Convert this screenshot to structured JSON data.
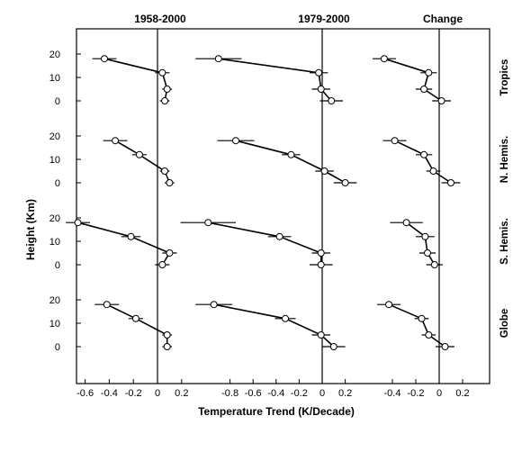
{
  "chart_data": {
    "type": "line",
    "column_titles": [
      "1958-2000",
      "1979-2000",
      "Change"
    ],
    "row_labels": [
      "Tropics",
      "N. Hemis.",
      "S. Hemis.",
      "Globe"
    ],
    "xlabel": "Temperature Trend (K/Decade)",
    "ylabel": "Height (Km)",
    "x_ticks": [
      [
        "-0.6",
        "-0.4",
        "-0.2",
        "0",
        "0.2"
      ],
      [
        "-0.8",
        "-0.6",
        "-0.4",
        "-0.2",
        "0",
        "0.2"
      ],
      [
        "-0.4",
        "-0.2",
        "0",
        "0.2"
      ]
    ],
    "x_tick_values": [
      [
        -0.6,
        -0.4,
        -0.2,
        0,
        0.2
      ],
      [
        -0.8,
        -0.6,
        -0.4,
        -0.2,
        0,
        0.2
      ],
      [
        -0.4,
        -0.2,
        0,
        0.2
      ]
    ],
    "y_ticks": [
      "0",
      "10",
      "20"
    ],
    "y_tick_values": [
      0,
      10,
      20
    ],
    "heights_km": [
      18,
      12,
      5,
      0
    ],
    "panels": [
      {
        "row": 0,
        "col": 0,
        "values": [
          -0.44,
          0.04,
          0.08,
          0.06
        ],
        "err": [
          0.1,
          0.06,
          0.04,
          0.04
        ]
      },
      {
        "row": 0,
        "col": 1,
        "values": [
          -0.9,
          -0.03,
          -0.01,
          0.08
        ],
        "err": [
          0.2,
          0.08,
          0.08,
          0.1
        ]
      },
      {
        "row": 0,
        "col": 2,
        "values": [
          -0.47,
          -0.09,
          -0.13,
          0.02
        ],
        "err": [
          0.1,
          0.07,
          0.07,
          0.08
        ]
      },
      {
        "row": 1,
        "col": 0,
        "values": [
          -0.35,
          -0.15,
          0.06,
          0.1
        ],
        "err": [
          0.1,
          0.06,
          0.04,
          0.04
        ]
      },
      {
        "row": 1,
        "col": 1,
        "values": [
          -0.75,
          -0.27,
          0.02,
          0.2
        ],
        "err": [
          0.16,
          0.08,
          0.08,
          0.1
        ]
      },
      {
        "row": 1,
        "col": 2,
        "values": [
          -0.38,
          -0.13,
          -0.05,
          0.1
        ],
        "err": [
          0.1,
          0.07,
          0.06,
          0.08
        ]
      },
      {
        "row": 2,
        "col": 0,
        "values": [
          -0.66,
          -0.22,
          0.1,
          0.04
        ],
        "err": [
          0.1,
          0.08,
          0.06,
          0.06
        ]
      },
      {
        "row": 2,
        "col": 1,
        "values": [
          -0.99,
          -0.37,
          -0.01,
          -0.01
        ],
        "err": [
          0.24,
          0.1,
          0.08,
          0.1
        ]
      },
      {
        "row": 2,
        "col": 2,
        "values": [
          -0.28,
          -0.12,
          -0.1,
          -0.04
        ],
        "err": [
          0.14,
          0.08,
          0.07,
          0.07
        ]
      },
      {
        "row": 3,
        "col": 0,
        "values": [
          -0.42,
          -0.18,
          0.08,
          0.08
        ],
        "err": [
          0.1,
          0.06,
          0.04,
          0.04
        ]
      },
      {
        "row": 3,
        "col": 1,
        "values": [
          -0.94,
          -0.32,
          -0.01,
          0.1
        ],
        "err": [
          0.16,
          0.09,
          0.08,
          0.1
        ]
      },
      {
        "row": 3,
        "col": 2,
        "values": [
          -0.43,
          -0.15,
          -0.09,
          0.05
        ],
        "err": [
          0.1,
          0.06,
          0.06,
          0.08
        ]
      }
    ],
    "grid": false,
    "legend": "none"
  }
}
